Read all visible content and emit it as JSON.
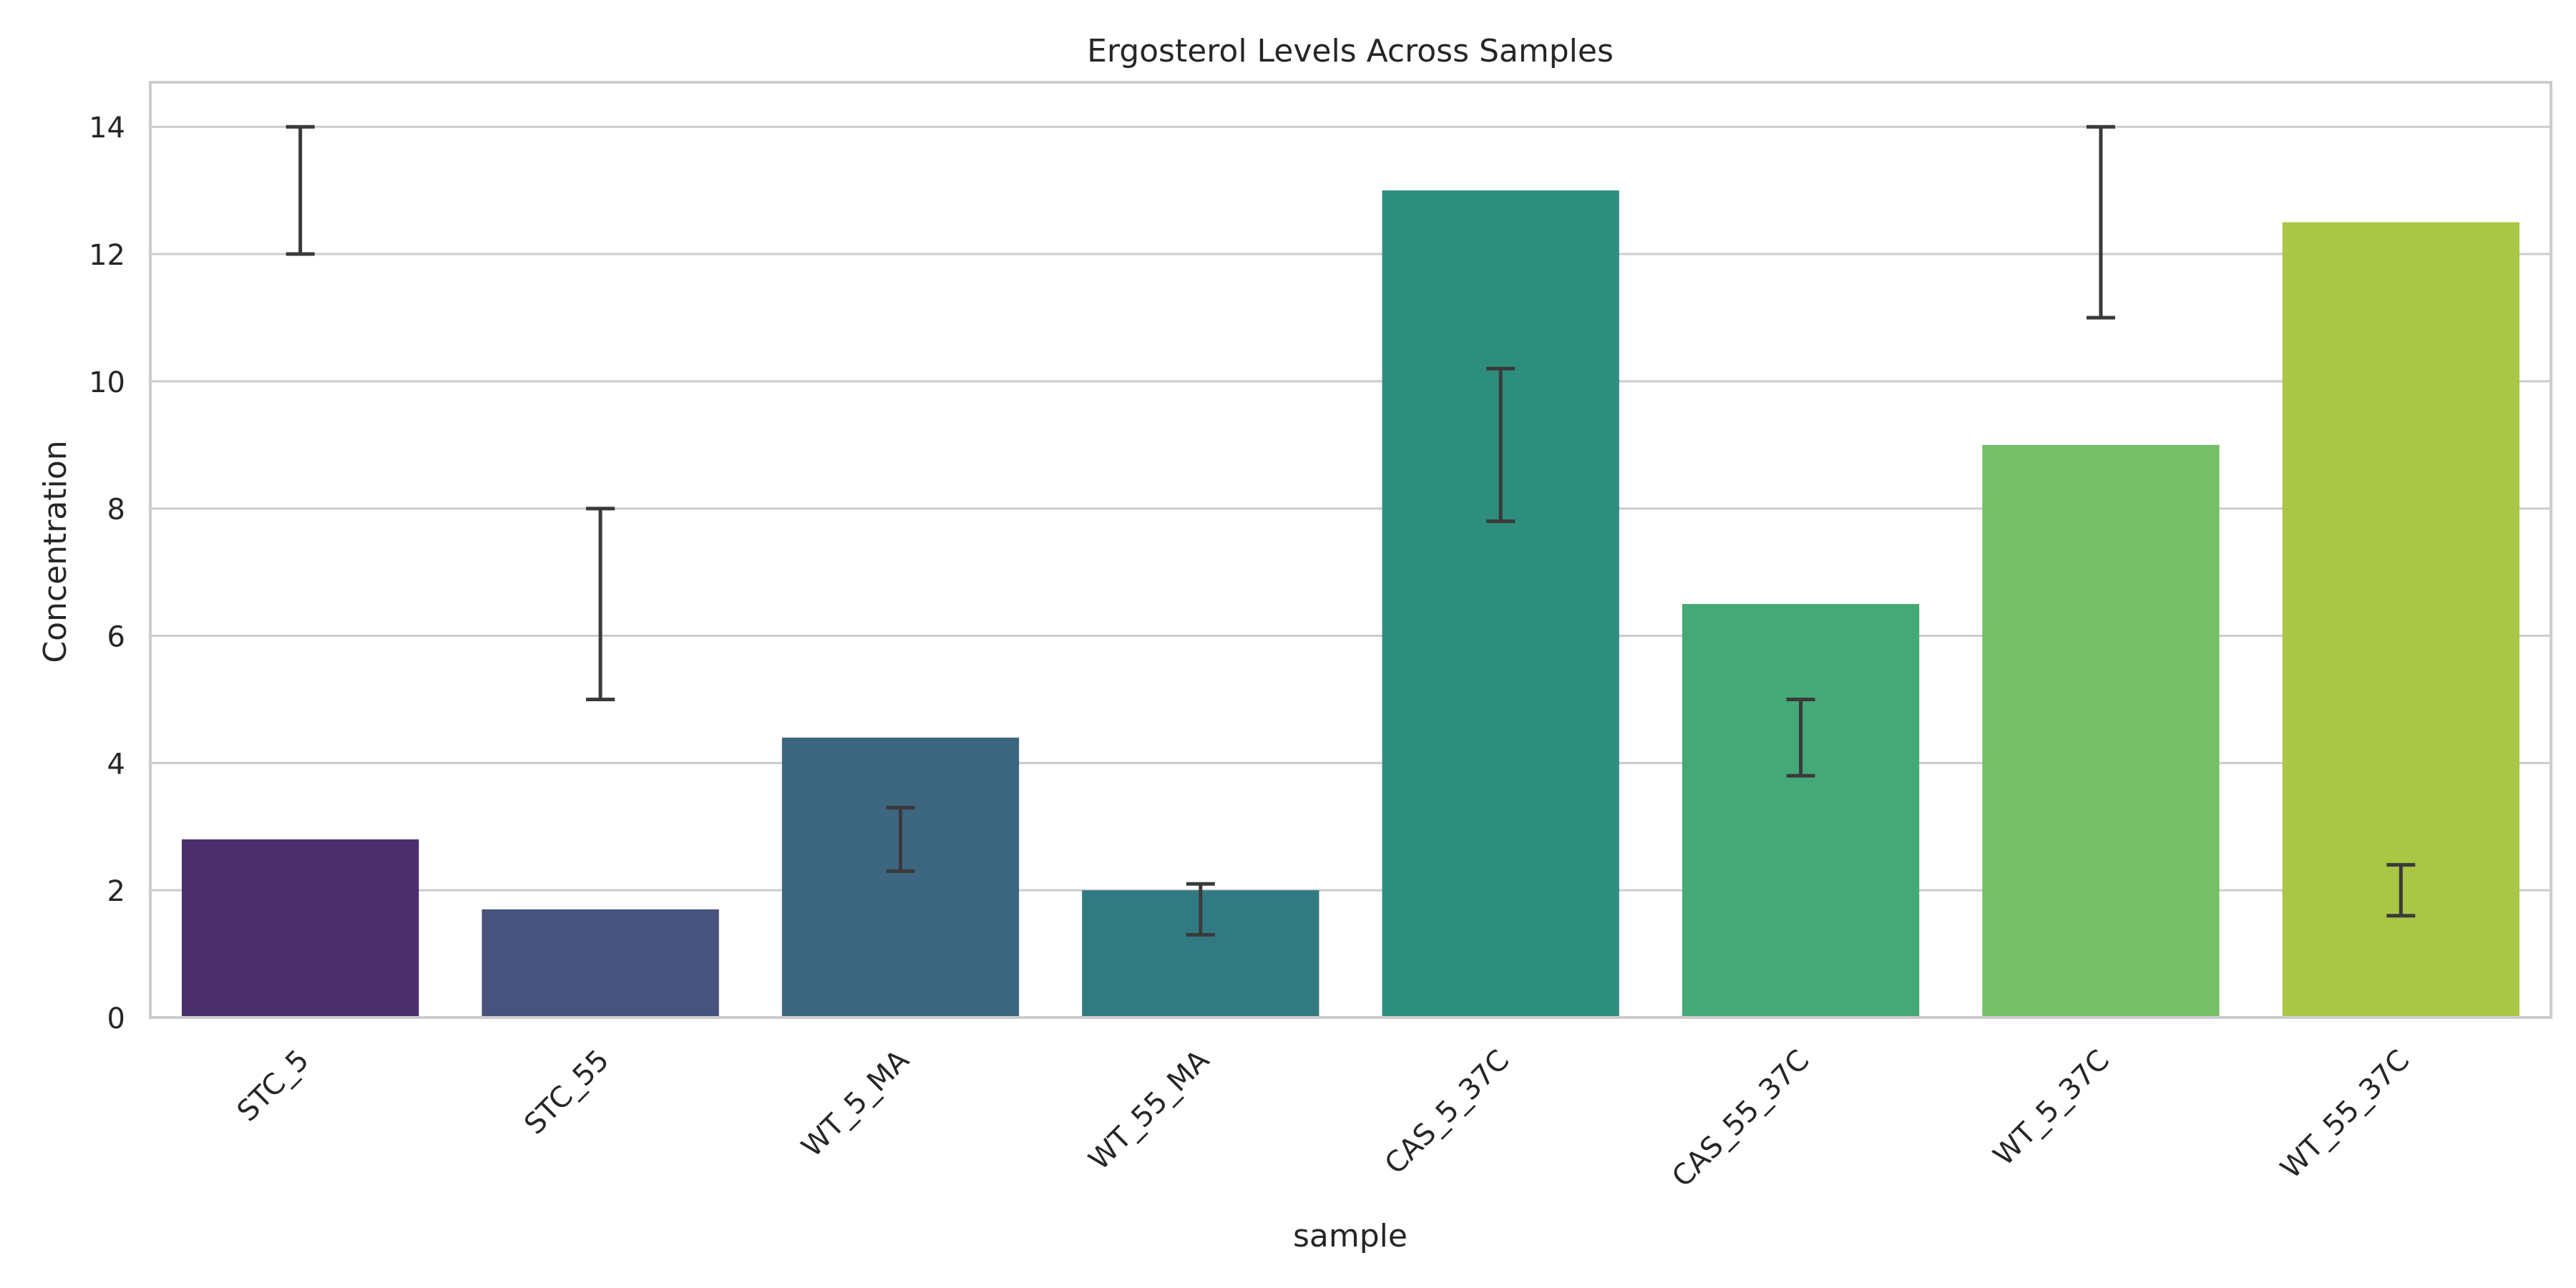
{
  "chart_data": {
    "type": "bar",
    "title": "Ergosterol Levels Across Samples",
    "xlabel": "sample",
    "ylabel": "Concentration",
    "ylim": [
      0,
      14.7
    ],
    "yticks": [
      0,
      2,
      4,
      6,
      8,
      10,
      12,
      14
    ],
    "grid": true,
    "categories": [
      "STC_5",
      "STC_55",
      "WT_5_MA",
      "WT_55_MA",
      "CAS_5_37C",
      "CAS_55_37C",
      "WT_5_37C",
      "WT_55_37C"
    ],
    "values": [
      2.8,
      1.7,
      4.4,
      2.0,
      13.0,
      6.5,
      9.0,
      12.5
    ],
    "error_bars": [
      {
        "low": 12.0,
        "high": 14.0
      },
      {
        "low": 5.0,
        "high": 8.0
      },
      {
        "low": 2.3,
        "high": 3.3
      },
      {
        "low": 1.3,
        "high": 2.1
      },
      {
        "low": 7.8,
        "high": 10.2
      },
      {
        "low": 3.8,
        "high": 5.0
      },
      {
        "low": 11.0,
        "high": 14.0
      },
      {
        "low": 1.6,
        "high": 2.4
      }
    ],
    "colors": [
      "#4a2f6c",
      "#47527e",
      "#3d6680",
      "#327a82",
      "#2e8e7e",
      "#45a877",
      "#76be68",
      "#a9c644"
    ]
  }
}
